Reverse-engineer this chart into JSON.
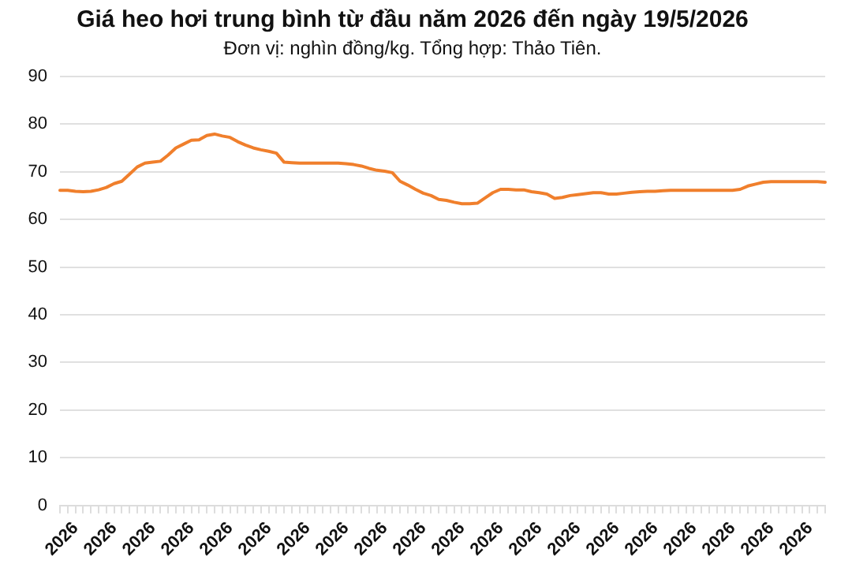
{
  "chart_data": {
    "type": "line",
    "title": "Giá heo hơi trung bình từ đầu năm 2026 đến ngày 19/5/2026",
    "subtitle": "Đơn vị: nghìn đồng/kg. Tổng hợp: Thảo Tiên.",
    "categories": [
      "2026",
      null,
      null,
      null,
      null,
      "2026",
      null,
      null,
      null,
      null,
      "2026",
      null,
      null,
      null,
      null,
      "2026",
      null,
      null,
      null,
      null,
      "2026",
      null,
      null,
      null,
      null,
      "2026",
      null,
      null,
      null,
      null,
      "2026",
      null,
      null,
      null,
      null,
      "2026",
      null,
      null,
      null,
      null,
      "2026",
      null,
      null,
      null,
      null,
      "2026",
      null,
      null,
      null,
      null,
      "2026",
      null,
      null,
      null,
      null,
      "2026",
      null,
      null,
      null,
      null,
      "2026",
      null,
      null,
      null,
      null,
      "2026",
      null,
      null,
      null,
      null,
      "2026",
      null,
      null,
      null,
      null,
      "2026",
      null,
      null,
      null,
      null,
      "2026",
      null,
      null,
      null,
      null,
      "2026",
      null,
      null,
      null,
      null,
      "2026",
      null,
      null,
      null,
      null,
      "2026",
      null,
      null,
      null,
      null
    ],
    "series": [
      {
        "color": "#f07f2c",
        "values": [
          66.1,
          66.1,
          65.9,
          65.8,
          65.9,
          66.2,
          66.7,
          67.5,
          68.0,
          69.5,
          71.0,
          71.8,
          72.0,
          72.2,
          73.5,
          75.0,
          75.8,
          76.6,
          76.7,
          77.6,
          77.9,
          77.5,
          77.2,
          76.3,
          75.6,
          75.0,
          74.6,
          74.3,
          73.9,
          72.0,
          71.9,
          71.8,
          71.8,
          71.8,
          71.8,
          71.8,
          71.8,
          71.7,
          71.5,
          71.2,
          70.7,
          70.3,
          70.1,
          69.8,
          68.0,
          67.2,
          66.3,
          65.5,
          65.0,
          64.2,
          64.0,
          63.6,
          63.3,
          63.3,
          63.4,
          64.5,
          65.6,
          66.3,
          66.3,
          66.2,
          66.2,
          65.8,
          65.6,
          65.3,
          64.4,
          64.6,
          65.0,
          65.2,
          65.4,
          65.6,
          65.6,
          65.3,
          65.3,
          65.5,
          65.7,
          65.8,
          65.9,
          65.9,
          66.0,
          66.1,
          66.1,
          66.1,
          66.1,
          66.1,
          66.1,
          66.1,
          66.1,
          66.1,
          66.3,
          67.0,
          67.4,
          67.8,
          67.9,
          67.9,
          67.9,
          67.9,
          67.9,
          67.9,
          67.9,
          67.8
        ]
      }
    ],
    "ylim": [
      0,
      90
    ],
    "yticks": [
      0,
      10,
      20,
      30,
      40,
      50,
      60,
      70,
      80,
      90
    ],
    "grid": "y",
    "legend": false,
    "marker": "none",
    "line_style": "solid"
  }
}
